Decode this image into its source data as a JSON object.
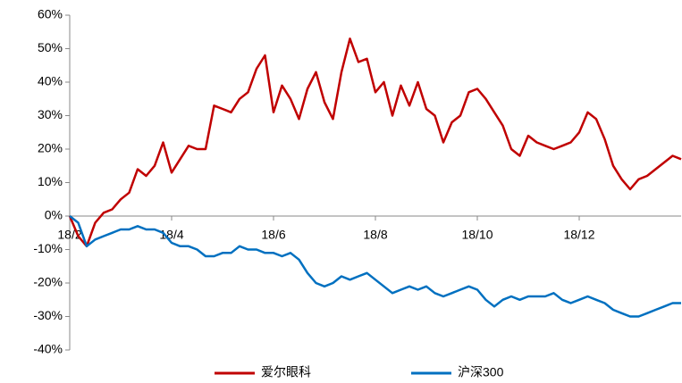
{
  "chart_data": {
    "type": "line",
    "categories": [
      "18/2",
      null,
      null,
      null,
      null,
      null,
      null,
      null,
      null,
      null,
      null,
      null,
      "18/4",
      null,
      null,
      null,
      null,
      null,
      null,
      null,
      null,
      null,
      null,
      null,
      "18/6",
      null,
      null,
      null,
      null,
      null,
      null,
      null,
      null,
      null,
      null,
      null,
      "18/8",
      null,
      null,
      null,
      null,
      null,
      null,
      null,
      null,
      null,
      null,
      null,
      "18/10",
      null,
      null,
      null,
      null,
      null,
      null,
      null,
      null,
      null,
      null,
      null,
      "18/12",
      null,
      null,
      null,
      null,
      null,
      null,
      null,
      null,
      null,
      null,
      null,
      null
    ],
    "series": [
      {
        "name": "爱尔眼科",
        "color": "#c00000",
        "values": [
          0,
          -6,
          -9,
          -2,
          1,
          2,
          5,
          7,
          14,
          12,
          15,
          22,
          13,
          17,
          21,
          20,
          20,
          33,
          32,
          31,
          35,
          37,
          44,
          48,
          31,
          39,
          35,
          29,
          38,
          43,
          34,
          29,
          43,
          53,
          46,
          47,
          37,
          40,
          30,
          39,
          33,
          40,
          32,
          30,
          22,
          28,
          30,
          37,
          38,
          35,
          31,
          27,
          20,
          18,
          24,
          22,
          21,
          20,
          21,
          22,
          25,
          31,
          29,
          23,
          15,
          11,
          8,
          11,
          12,
          14,
          16,
          18,
          17
        ]
      },
      {
        "name": "沪深300",
        "color": "#0070c0",
        "values": [
          0,
          -2,
          -9,
          -7,
          -6,
          -5,
          -4,
          -4,
          -3,
          -4,
          -4,
          -5,
          -8,
          -9,
          -9,
          -10,
          -12,
          -12,
          -11,
          -11,
          -9,
          -10,
          -10,
          -11,
          -11,
          -12,
          -11,
          -13,
          -17,
          -20,
          -21,
          -20,
          -18,
          -19,
          -18,
          -17,
          -19,
          -21,
          -23,
          -22,
          -21,
          -22,
          -21,
          -23,
          -24,
          -23,
          -22,
          -21,
          -22,
          -25,
          -27,
          -25,
          -24,
          -25,
          -24,
          -24,
          -24,
          -23,
          -25,
          -26,
          -25,
          -24,
          -25,
          -26,
          -28,
          -29,
          -30,
          -30,
          -29,
          -28,
          -27,
          -26,
          -26
        ]
      }
    ],
    "ylim": [
      -40,
      60
    ],
    "yticks": [
      {
        "value": -40,
        "label": "-40%"
      },
      {
        "value": -30,
        "label": "-30%"
      },
      {
        "value": -20,
        "label": "-20%"
      },
      {
        "value": -10,
        "label": "-10%"
      },
      {
        "value": 0,
        "label": "0%"
      },
      {
        "value": 10,
        "label": "10%"
      },
      {
        "value": 20,
        "label": "20%"
      },
      {
        "value": 30,
        "label": "30%"
      },
      {
        "value": 40,
        "label": "40%"
      },
      {
        "value": 50,
        "label": "50%"
      },
      {
        "value": 60,
        "label": "60%"
      }
    ],
    "legend": "bottom"
  }
}
